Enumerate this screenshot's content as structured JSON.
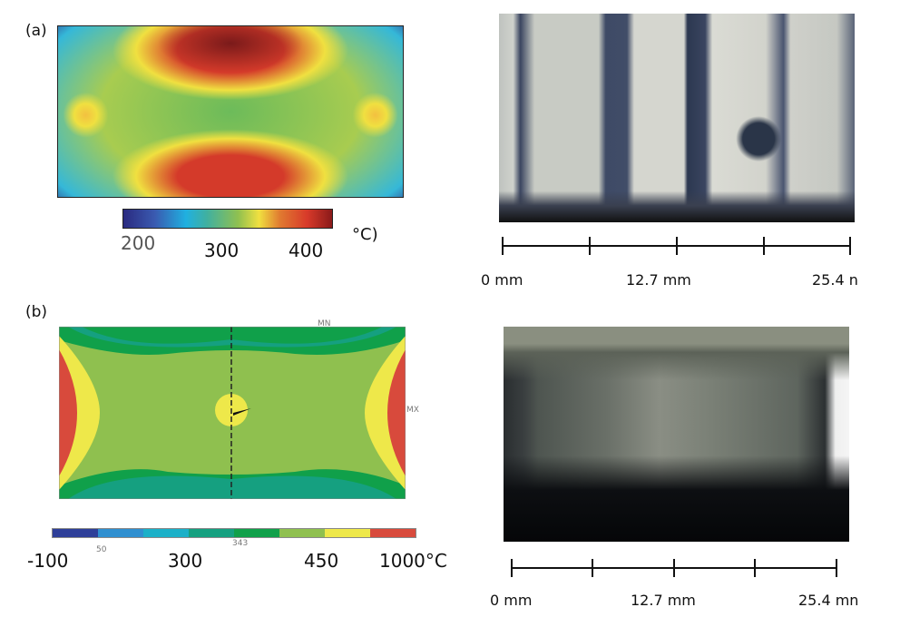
{
  "panel_a": {
    "label": "(a)",
    "colorbar": {
      "ticks": [
        "200",
        "300",
        "400"
      ],
      "unit": "°C)"
    },
    "scale": {
      "labels": [
        "0 mm",
        "12.7 mm",
        "25.4 n"
      ]
    }
  },
  "panel_b": {
    "label": "(b)",
    "markers": {
      "mn": "MN",
      "mx": "MX"
    },
    "colorbar": {
      "ticks": [
        "-100",
        "300",
        "450",
        "1000°C"
      ],
      "small_ticks": [
        "50",
        "343"
      ],
      "bands": [
        "#2e3f99",
        "#2f8fd0",
        "#1bb0c8",
        "#15a080",
        "#10a04a",
        "#8fc04f",
        "#eee84a",
        "#d84a3c"
      ]
    },
    "scale": {
      "labels": [
        "0 mm",
        "12.7 mm",
        "25.4 mn"
      ]
    }
  }
}
